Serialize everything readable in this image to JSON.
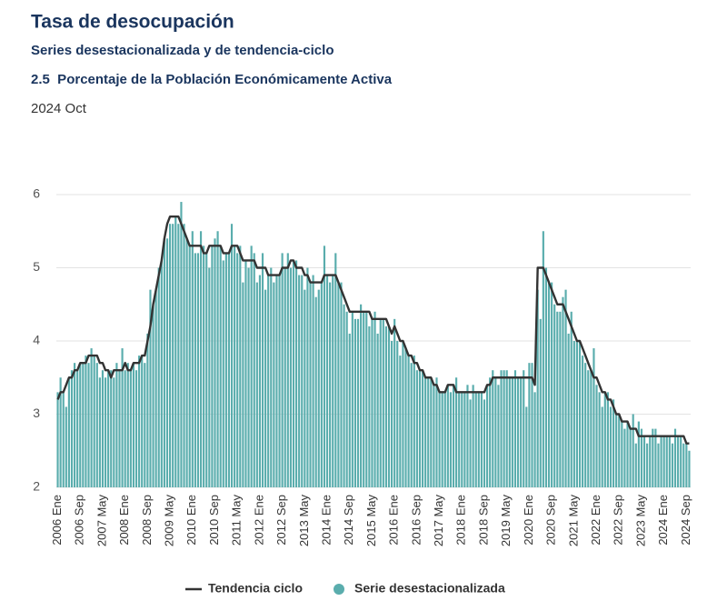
{
  "chart_data": {
    "type": "bar",
    "title": "Tasa de desocupación",
    "subtitle": "Series desestacionalizada y de tendencia-ciclo",
    "unit_label": "2.5  Porcentaje de la Población Económicamente Activa",
    "period": "2024 Oct",
    "categories": [
      "2006 Ene",
      null,
      null,
      null,
      null,
      null,
      null,
      null,
      "2006 Sep",
      null,
      null,
      null,
      null,
      null,
      null,
      null,
      "2007 May",
      null,
      null,
      null,
      null,
      null,
      null,
      null,
      "2008 Ene",
      null,
      null,
      null,
      null,
      null,
      null,
      null,
      "2008 Sep",
      null,
      null,
      null,
      null,
      null,
      null,
      null,
      "2009 May",
      null,
      null,
      null,
      null,
      null,
      null,
      null,
      "2010 Ene",
      null,
      null,
      null,
      null,
      null,
      null,
      null,
      "2010 Sep",
      null,
      null,
      null,
      null,
      null,
      null,
      null,
      "2011 May",
      null,
      null,
      null,
      null,
      null,
      null,
      null,
      "2012 Ene",
      null,
      null,
      null,
      null,
      null,
      null,
      null,
      "2012 Sep",
      null,
      null,
      null,
      null,
      null,
      null,
      null,
      "2013 May",
      null,
      null,
      null,
      null,
      null,
      null,
      null,
      "2014 Ene",
      null,
      null,
      null,
      null,
      null,
      null,
      null,
      "2014 Sep",
      null,
      null,
      null,
      null,
      null,
      null,
      null,
      "2015 May",
      null,
      null,
      null,
      null,
      null,
      null,
      null,
      "2016 Ene",
      null,
      null,
      null,
      null,
      null,
      null,
      null,
      "2016 Sep",
      null,
      null,
      null,
      null,
      null,
      null,
      null,
      "2017 May",
      null,
      null,
      null,
      null,
      null,
      null,
      null,
      "2018 Ene",
      null,
      null,
      null,
      null,
      null,
      null,
      null,
      "2018 Sep",
      null,
      null,
      null,
      null,
      null,
      null,
      null,
      "2019 May",
      null,
      null,
      null,
      null,
      null,
      null,
      null,
      "2020 Ene",
      null,
      null,
      null,
      null,
      null,
      null,
      null,
      "2020 Sep",
      null,
      null,
      null,
      null,
      null,
      null,
      null,
      "2021 May",
      null,
      null,
      null,
      null,
      null,
      null,
      null,
      "2022 Ene",
      null,
      null,
      null,
      null,
      null,
      null,
      null,
      "2022 Sep",
      null,
      null,
      null,
      null,
      null,
      null,
      null,
      "2023 May",
      null,
      null,
      null,
      null,
      null,
      null,
      null,
      "2024 Ene",
      null,
      null,
      null,
      null,
      null,
      null,
      null,
      "2024 Sep",
      null
    ],
    "series": [
      {
        "name": "Tendencia ciclo",
        "type": "line",
        "color": "#333333",
        "values": [
          3.2,
          3.3,
          3.3,
          3.4,
          3.5,
          3.5,
          3.6,
          3.6,
          3.7,
          3.7,
          3.7,
          3.8,
          3.8,
          3.8,
          3.8,
          3.7,
          3.7,
          3.6,
          3.6,
          3.5,
          3.6,
          3.6,
          3.6,
          3.6,
          3.7,
          3.6,
          3.6,
          3.7,
          3.7,
          3.7,
          3.8,
          3.8,
          4.0,
          4.2,
          4.5,
          4.7,
          4.9,
          5.1,
          5.4,
          5.6,
          5.7,
          5.7,
          5.7,
          5.7,
          5.6,
          5.5,
          5.4,
          5.3,
          5.3,
          5.3,
          5.3,
          5.3,
          5.2,
          5.2,
          5.3,
          5.3,
          5.3,
          5.3,
          5.3,
          5.2,
          5.2,
          5.2,
          5.3,
          5.3,
          5.3,
          5.2,
          5.1,
          5.1,
          5.1,
          5.1,
          5.1,
          5.0,
          5.0,
          5.0,
          5.0,
          4.9,
          4.9,
          4.9,
          4.9,
          4.9,
          5.0,
          5.0,
          5.0,
          5.1,
          5.1,
          5.0,
          5.0,
          5.0,
          4.9,
          4.9,
          4.8,
          4.8,
          4.8,
          4.8,
          4.8,
          4.9,
          4.9,
          4.9,
          4.9,
          4.9,
          4.8,
          4.7,
          4.6,
          4.5,
          4.4,
          4.4,
          4.4,
          4.4,
          4.4,
          4.4,
          4.4,
          4.4,
          4.3,
          4.3,
          4.3,
          4.3,
          4.3,
          4.3,
          4.2,
          4.1,
          4.2,
          4.1,
          4.0,
          4.0,
          3.9,
          3.8,
          3.8,
          3.7,
          3.7,
          3.6,
          3.6,
          3.5,
          3.5,
          3.5,
          3.4,
          3.4,
          3.3,
          3.3,
          3.3,
          3.4,
          3.4,
          3.4,
          3.3,
          3.3,
          3.3,
          3.3,
          3.3,
          3.3,
          3.3,
          3.3,
          3.3,
          3.3,
          3.3,
          3.4,
          3.4,
          3.5,
          3.5,
          3.5,
          3.5,
          3.5,
          3.5,
          3.5,
          3.5,
          3.5,
          3.5,
          3.5,
          3.5,
          3.5,
          3.5,
          3.5,
          3.4,
          5.0,
          5.0,
          5.0,
          4.9,
          4.8,
          4.7,
          4.6,
          4.5,
          4.5,
          4.5,
          4.4,
          4.3,
          4.2,
          4.1,
          4.0,
          4.0,
          3.9,
          3.8,
          3.7,
          3.6,
          3.5,
          3.5,
          3.4,
          3.3,
          3.3,
          3.2,
          3.2,
          3.1,
          3.0,
          3.0,
          2.9,
          2.9,
          2.9,
          2.8,
          2.8,
          2.8,
          2.7,
          2.7,
          2.7,
          2.7,
          2.7,
          2.7,
          2.7,
          2.7,
          2.7,
          2.7,
          2.7,
          2.7,
          2.7,
          2.7,
          2.7,
          2.7,
          2.7,
          2.6,
          2.6
        ]
      },
      {
        "name": "Serie desestacionalizada",
        "type": "bar",
        "color": "#5aadad",
        "values": [
          3.3,
          3.5,
          3.3,
          3.1,
          3.5,
          3.6,
          3.7,
          3.6,
          3.7,
          3.7,
          3.8,
          3.7,
          3.9,
          3.8,
          3.7,
          3.5,
          3.6,
          3.5,
          3.6,
          3.6,
          3.5,
          3.7,
          3.6,
          3.9,
          3.6,
          3.7,
          3.6,
          3.7,
          3.6,
          3.8,
          3.8,
          3.7,
          4.1,
          4.7,
          4.5,
          4.7,
          5.0,
          5.1,
          5.4,
          5.4,
          5.6,
          5.6,
          5.7,
          5.6,
          5.9,
          5.6,
          5.4,
          5.3,
          5.5,
          5.2,
          5.2,
          5.5,
          5.3,
          5.2,
          5.0,
          5.3,
          5.4,
          5.5,
          5.3,
          5.1,
          5.2,
          5.2,
          5.6,
          5.3,
          5.2,
          5.3,
          4.8,
          5.1,
          5.0,
          5.3,
          5.2,
          4.8,
          4.9,
          5.2,
          4.7,
          4.9,
          5.0,
          4.8,
          4.9,
          4.9,
          5.2,
          5.0,
          5.2,
          5.0,
          5.1,
          5.1,
          4.9,
          4.9,
          4.7,
          5.0,
          4.8,
          4.9,
          4.6,
          4.7,
          4.8,
          5.3,
          4.9,
          4.8,
          4.9,
          5.2,
          4.8,
          4.8,
          4.5,
          4.4,
          4.1,
          4.4,
          4.3,
          4.3,
          4.5,
          4.4,
          4.4,
          4.2,
          4.3,
          4.4,
          4.1,
          4.3,
          4.3,
          4.2,
          4.2,
          4.0,
          4.3,
          4.0,
          3.8,
          4.0,
          3.9,
          3.8,
          3.7,
          3.8,
          3.6,
          3.6,
          3.6,
          3.5,
          3.5,
          3.5,
          3.4,
          3.5,
          3.3,
          3.3,
          3.3,
          3.4,
          3.3,
          3.4,
          3.5,
          3.3,
          3.3,
          3.3,
          3.4,
          3.2,
          3.4,
          3.3,
          3.3,
          3.3,
          3.2,
          3.4,
          3.5,
          3.6,
          3.5,
          3.4,
          3.6,
          3.6,
          3.6,
          3.5,
          3.5,
          3.6,
          3.5,
          3.5,
          3.6,
          3.1,
          3.7,
          3.7,
          3.3,
          4.7,
          4.3,
          5.5,
          5.0,
          4.8,
          4.8,
          4.5,
          4.4,
          4.4,
          4.6,
          4.7,
          4.1,
          4.4,
          4.0,
          4.0,
          4.0,
          3.8,
          3.7,
          3.6,
          3.6,
          3.9,
          3.4,
          3.3,
          3.1,
          3.3,
          3.3,
          3.1,
          3.2,
          3.0,
          3.0,
          2.9,
          2.8,
          2.9,
          2.8,
          3.0,
          2.6,
          2.9,
          2.8,
          2.7,
          2.6,
          2.7,
          2.8,
          2.8,
          2.6,
          2.7,
          2.7,
          2.7,
          2.7,
          2.6,
          2.8,
          2.7,
          2.7,
          2.6,
          2.6,
          2.5
        ]
      }
    ],
    "ylim": [
      2,
      6
    ],
    "yticks": [
      2,
      3,
      4,
      5,
      6
    ],
    "grid": true,
    "legend": "bottom"
  }
}
